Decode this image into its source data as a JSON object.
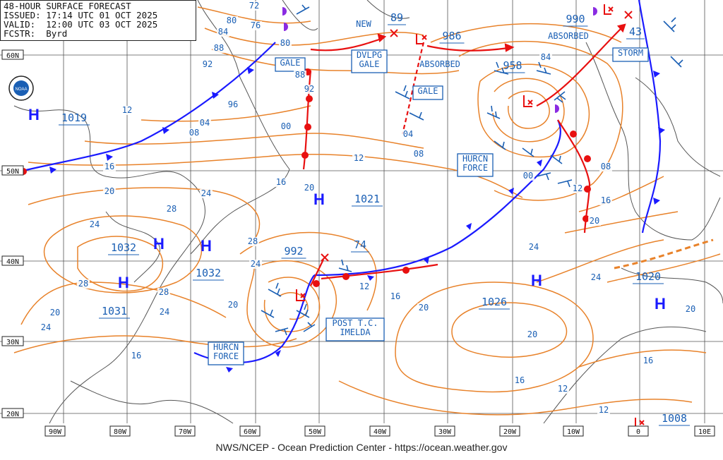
{
  "header": {
    "line1": "48-HOUR SURFACE FORECAST",
    "line2": "ISSUED: 17:14 UTC 01 OCT 2025",
    "line3": "VALID:  12:00 UTC 03 OCT 2025",
    "line4": "FCSTR:  Byrd"
  },
  "footer": "NWS/NCEP - Ocean Prediction Center - https://ocean.weather.gov",
  "logo": "NOAA",
  "lat_labels": [
    "60N",
    "50N",
    "40N",
    "30N",
    "20N"
  ],
  "lon_labels": [
    "90W",
    "80W",
    "70W",
    "60W",
    "50W",
    "40W",
    "30W",
    "20W",
    "10W",
    "0",
    "10E"
  ],
  "pressure_centers": [
    {
      "type": "H",
      "value": "1019"
    },
    {
      "type": "H",
      "value": "1032"
    },
    {
      "type": "H",
      "value": "1031"
    },
    {
      "type": "H",
      "value": "1032"
    },
    {
      "type": "H",
      "value": "1021"
    },
    {
      "type": "L",
      "value": "992"
    },
    {
      "type": "L",
      "value": "74"
    },
    {
      "type": "L",
      "value": "958"
    },
    {
      "type": "L",
      "value": "986"
    },
    {
      "type": "L",
      "value": "89"
    },
    {
      "type": "L",
      "value": "990"
    },
    {
      "type": "L",
      "value": "43"
    },
    {
      "type": "H",
      "value": "1026"
    },
    {
      "type": "H",
      "value": "1020"
    },
    {
      "type": "L",
      "value": "1008"
    }
  ],
  "boxed_labels": [
    "GALE",
    "DVLPG GALE",
    "GALE",
    "HURCN FORCE",
    "STORM",
    "POST T.C. IMELDA",
    "HURCN FORCE"
  ],
  "plain_labels": [
    "NEW",
    "ABSORBED",
    "ABSORBED"
  ],
  "isobar_labels": [
    "80",
    "72",
    "84",
    "76",
    "88",
    "92",
    "80",
    "88",
    "92",
    "96",
    "00",
    "04",
    "08",
    "12",
    "16",
    "20",
    "24",
    "28",
    "28",
    "24",
    "28",
    "24",
    "20",
    "16",
    "04",
    "08",
    "12",
    "16",
    "20",
    "24",
    "28",
    "20",
    "24",
    "20",
    "16",
    "12",
    "00",
    "08",
    "12",
    "16",
    "20",
    "24",
    "24",
    "20",
    "16",
    "12",
    "84",
    "12",
    "16",
    "20"
  ],
  "colors": {
    "isobar": "#e8822a",
    "cold_front": "#1a1aff",
    "warm_front": "#e81010",
    "occluded": "#8a2be2",
    "text": "#1a5fb4",
    "grid": "#666666",
    "coast": "#555555"
  }
}
